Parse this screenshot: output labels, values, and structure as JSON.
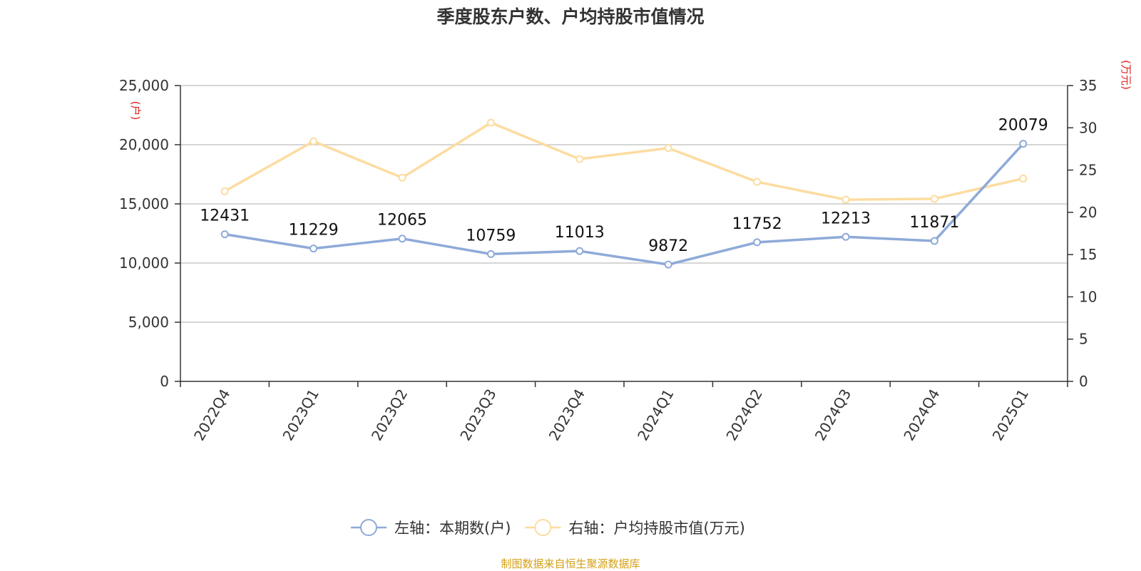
{
  "page": {
    "title": "季度股东户数、户均持股市值情况",
    "source": "制图数据来自恒生聚源数据库"
  },
  "chart_data": {
    "type": "line",
    "title": "季度股东户数、户均持股市值情况",
    "categories": [
      "2022Q4",
      "2023Q1",
      "2023Q2",
      "2023Q3",
      "2023Q4",
      "2024Q1",
      "2024Q2",
      "2024Q3",
      "2024Q4",
      "2025Q1"
    ],
    "series": [
      {
        "name": "左轴：本期数(户)",
        "axis": "left",
        "color": "#8eaad8",
        "values": [
          12431,
          11229,
          12065,
          10759,
          11013,
          9872,
          11752,
          12213,
          11871,
          20079
        ],
        "show_labels": true
      },
      {
        "name": "右轴：户均持股市值(万元)",
        "axis": "right",
        "color": "#fcdca0",
        "values": [
          22.5,
          28.4,
          24.1,
          30.6,
          26.3,
          27.6,
          23.6,
          21.5,
          21.6,
          24.0
        ],
        "show_labels": false
      }
    ],
    "left_axis": {
      "unit": "(户)",
      "ylim": [
        0,
        25000
      ],
      "ticks": [
        0,
        5000,
        10000,
        15000,
        20000,
        25000
      ],
      "tick_labels": [
        "0",
        "5,000",
        "10,000",
        "15,000",
        "20,000",
        "25,000"
      ]
    },
    "right_axis": {
      "unit": "(万元)",
      "ylim": [
        0,
        35
      ],
      "ticks": [
        0,
        5,
        10,
        15,
        20,
        25,
        30,
        35
      ],
      "tick_labels": [
        "0",
        "5",
        "10",
        "15",
        "20",
        "25",
        "30",
        "35"
      ]
    },
    "unit_color": "#e02020",
    "grid": true,
    "legend_position": "bottom"
  }
}
